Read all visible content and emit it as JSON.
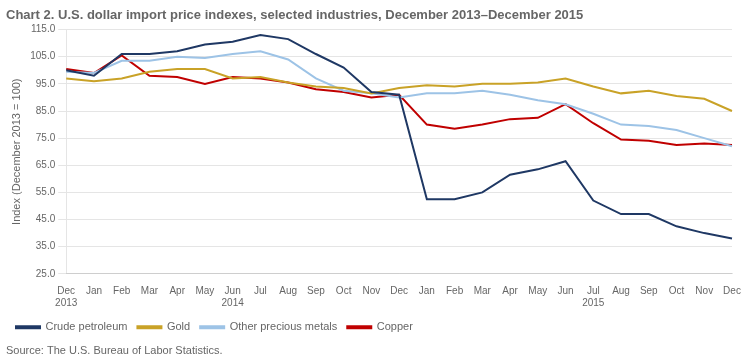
{
  "chart_data": {
    "type": "line",
    "title": "Chart 2. U.S. dollar import price indexes, selected industries, December 2013–December 2015",
    "y_label": "Index (December 2013 = 100)",
    "categories": [
      "Dec",
      "Jan",
      "Feb",
      "Mar",
      "Apr",
      "May",
      "Jun",
      "Jul",
      "Aug",
      "Sep",
      "Oct",
      "Nov",
      "Dec",
      "Jan",
      "Feb",
      "Mar",
      "Apr",
      "May",
      "Jun",
      "Jul",
      "Aug",
      "Sep",
      "Oct",
      "Nov",
      "Dec"
    ],
    "series": [
      {
        "name": "Crude petroleum",
        "color": "#1F3864",
        "values": [
          100.0,
          98.0,
          106.0,
          106.0,
          107.0,
          109.5,
          110.5,
          113.0,
          111.5,
          106.0,
          101.0,
          92.0,
          91.0,
          52.5,
          52.5,
          55.0,
          61.5,
          63.5,
          66.5,
          52.0,
          47.0,
          47.0,
          42.5,
          40.0,
          38.0
        ]
      },
      {
        "name": "Gold",
        "color": "#C9A227",
        "values": [
          97.0,
          96.0,
          97.0,
          99.5,
          100.5,
          100.5,
          97.0,
          97.5,
          95.5,
          94.0,
          93.5,
          91.5,
          93.5,
          94.5,
          94.0,
          95.0,
          95.0,
          95.5,
          97.0,
          94.0,
          91.5,
          92.5,
          90.5,
          89.5,
          85.0
        ]
      },
      {
        "name": "Other precious metals",
        "color": "#9DC3E6",
        "values": [
          99.5,
          99.0,
          103.5,
          103.5,
          105.0,
          104.5,
          106.0,
          107.0,
          104.0,
          97.0,
          92.5,
          91.5,
          90.0,
          91.5,
          91.5,
          92.5,
          91.0,
          89.0,
          87.5,
          84.0,
          80.0,
          79.5,
          78.0,
          75.0,
          72.0
        ]
      },
      {
        "name": "Copper",
        "color": "#C00000",
        "values": [
          100.5,
          99.0,
          105.5,
          98.0,
          97.5,
          95.0,
          97.5,
          97.0,
          95.5,
          93.0,
          92.0,
          90.0,
          91.0,
          80.0,
          78.5,
          80.0,
          82.0,
          82.5,
          87.5,
          80.5,
          74.5,
          74.0,
          72.5,
          73.0,
          72.5
        ]
      }
    ],
    "ylim": [
      25.0,
      115.0
    ],
    "yticks": [
      {
        "value": 25,
        "label": "25.0"
      },
      {
        "value": 35,
        "label": "35.0"
      },
      {
        "value": 45,
        "label": "45.0"
      },
      {
        "value": 55,
        "label": "55.0"
      },
      {
        "value": 65,
        "label": "65.0"
      },
      {
        "value": 75,
        "label": "75.0"
      },
      {
        "value": 85,
        "label": "85.0"
      },
      {
        "value": 95,
        "label": "95.0"
      },
      {
        "value": 105,
        "label": "105.0"
      },
      {
        "value": 115,
        "label": "115.0"
      }
    ],
    "annotations": [
      {
        "text": "2013",
        "x": 0
      },
      {
        "text": "2014",
        "x": 6
      },
      {
        "text": "2015",
        "x": 19
      },
      {
        "text": "Source: The U.S. Bureau of Labor Statistics."
      }
    ],
    "grid": "y",
    "legend": "lower left"
  }
}
